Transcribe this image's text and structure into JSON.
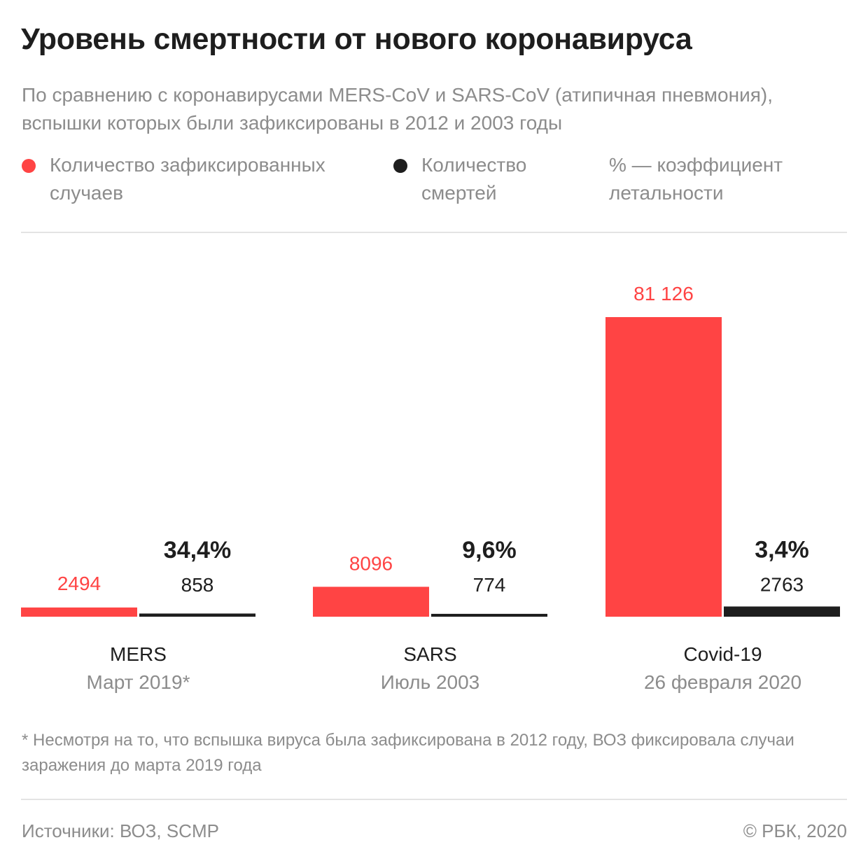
{
  "title": "Уровень смертности от нового коронавируса",
  "subtitle": "По сравнению с коронавирусами MERS-CoV и SARS-CoV (атипичная пневмония), вспышки которых были зафиксированы в 2012 и 2003 годы",
  "legend": {
    "cases": "Количество зафиксированных случаев",
    "deaths": "Количество смертей",
    "rate": "% — коэффициент летальности"
  },
  "colors": {
    "cases": "#ff4444",
    "deaths": "#1e1e1e",
    "muted_text": "#8c8c8c"
  },
  "chart_data": {
    "type": "bar",
    "categories": [
      "MERS",
      "SARS",
      "Covid-19"
    ],
    "category_dates": [
      "Март 2019*",
      "Июль 2003",
      "26 февраля 2020"
    ],
    "series": [
      {
        "name": "Количество зафиксированных случаев",
        "values": [
          2494,
          8096,
          81126
        ],
        "labels": [
          "2494",
          "8096",
          "81 126"
        ]
      },
      {
        "name": "Количество смертей",
        "values": [
          858,
          774,
          2763
        ],
        "labels": [
          "858",
          "774",
          "2763"
        ]
      }
    ],
    "fatality_rate": [
      "34,4%",
      "9,6%",
      "3,4%"
    ],
    "title": "Уровень смертности от нового коронавируса",
    "xlabel": "",
    "ylabel": "",
    "ylim": [
      0,
      81126
    ],
    "grid": false,
    "legend_position": "top"
  },
  "footnote": "* Несмотря на то, что вспышка вируса была зафиксирована в 2012 году, ВОЗ фиксировала случаи заражения до марта 2019 года",
  "source": "Источники: ВОЗ, SCMP",
  "copyright": "© РБК, 2020"
}
